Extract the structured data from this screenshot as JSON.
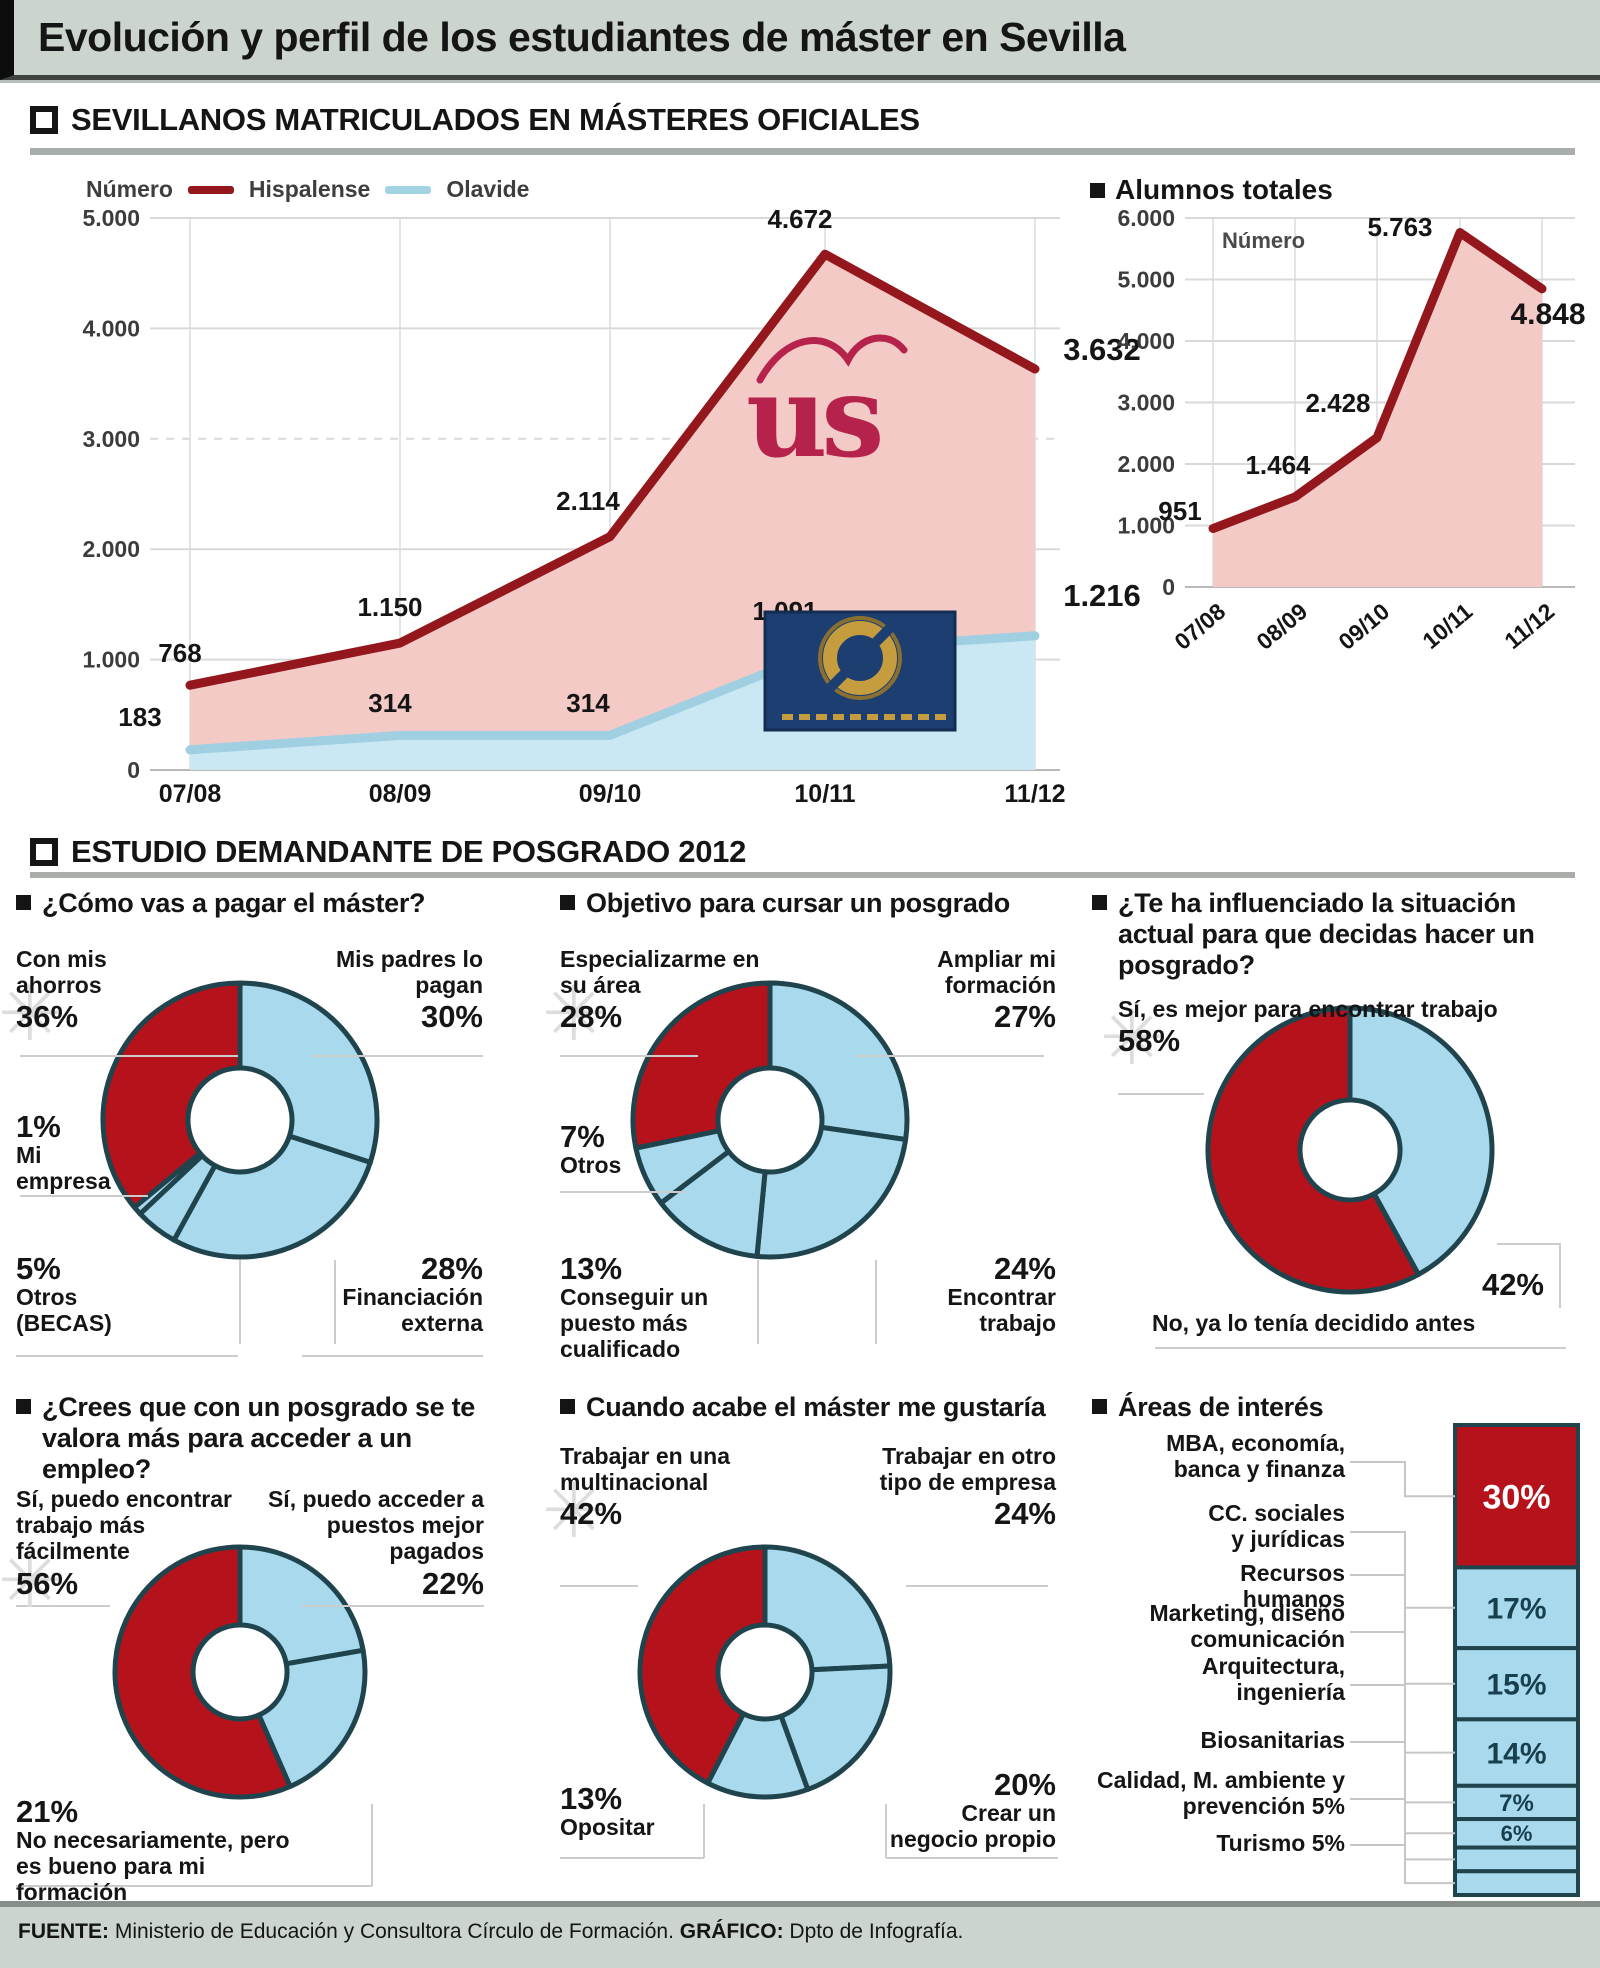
{
  "header": {
    "title": "Evolución y perfil de los estudiantes de máster en Sevilla"
  },
  "sections": [
    {
      "title": "SEVILLANOS MATRICULADOS EN MÁSTERES OFICIALES"
    },
    {
      "title": "ESTUDIO DEMANDANTE DE POSGRADO 2012"
    }
  ],
  "logos": {
    "us": "us"
  },
  "colors": {
    "red": "#b5121b",
    "blue": "#a9d9ec",
    "stroke": "#20444d",
    "pink": "#f4cac6",
    "light_blue_area": "#c9e8f4",
    "maroon_line": "#93171c",
    "olavide_line": "#9fcfe0",
    "band": "#ccd5cd"
  },
  "footer": {
    "fuente_label": "FUENTE:",
    "fuente_text": " Ministerio de Educación y Consultora Círculo de Formación. ",
    "grafico_label": "GRÁFICO:",
    "grafico_text": " Dpto de Infografía."
  },
  "chart_data": [
    {
      "id": "matriculados",
      "type": "area",
      "ylabel": "Número",
      "categories": [
        "07/08",
        "08/09",
        "09/10",
        "10/11",
        "11/12"
      ],
      "ylim": [
        0,
        5000
      ],
      "yticks": [
        "5.000",
        "4.000",
        "3.000",
        "2.000",
        "1.000",
        "0"
      ],
      "series": [
        {
          "name": "Hispalense",
          "color": "#93171c",
          "fill": "#f4cac6",
          "values": [
            768,
            1150,
            2114,
            4672,
            3632
          ],
          "labels": [
            "768",
            "1.150",
            "2.114",
            "4.672",
            "3.632"
          ]
        },
        {
          "name": "Olavide",
          "color": "#9fcfe0",
          "fill": "#c9e8f4",
          "values": [
            183,
            314,
            314,
            1091,
            1216
          ],
          "labels": [
            "183",
            "314",
            "314",
            "1.091",
            "1.216"
          ]
        }
      ]
    },
    {
      "id": "totales",
      "type": "area",
      "title": "Alumnos totales",
      "ylabel": "Número",
      "categories": [
        "07/08",
        "08/09",
        "09/10",
        "10/11",
        "11/12"
      ],
      "ylim": [
        0,
        6000
      ],
      "yticks": [
        "6.000",
        "5.000",
        "4.000",
        "3.000",
        "2.000",
        "1.000",
        "0"
      ],
      "series": [
        {
          "name": "Alumnos totales",
          "color": "#93171c",
          "fill": "#f4cac6",
          "values": [
            951,
            1464,
            2428,
            5763,
            4848
          ],
          "labels": [
            "951",
            "1.464",
            "2.428",
            "5.763",
            "4.848"
          ]
        }
      ]
    },
    {
      "id": "pago",
      "type": "donut",
      "question": "¿Cómo vas a pagar el máster?",
      "slices": [
        {
          "label": "Mis padres lo pagan",
          "pct": "30%",
          "value": 30,
          "color": "blue"
        },
        {
          "label": "Financiación externa",
          "pct": "28%",
          "value": 28,
          "color": "blue"
        },
        {
          "label": "Otros (BECAS)",
          "pct": "5%",
          "value": 5,
          "color": "blue"
        },
        {
          "label": "Mi empresa",
          "pct": "1%",
          "value": 1,
          "color": "blue"
        },
        {
          "label": "Con mis ahorros",
          "pct": "36%",
          "value": 36,
          "color": "red"
        }
      ]
    },
    {
      "id": "objetivo",
      "type": "donut",
      "question": "Objetivo para cursar un posgrado",
      "slices": [
        {
          "label": "Ampliar mi formación",
          "pct": "27%",
          "value": 27,
          "color": "blue"
        },
        {
          "label": "Encontrar trabajo",
          "pct": "24%",
          "value": 24,
          "color": "blue"
        },
        {
          "label": "Conseguir un puesto más cualificado",
          "pct": "13%",
          "value": 13,
          "color": "blue"
        },
        {
          "label": "Otros",
          "pct": "7%",
          "value": 7,
          "color": "blue"
        },
        {
          "label": "Especializarme en su área",
          "pct": "28%",
          "value": 28,
          "color": "red"
        }
      ]
    },
    {
      "id": "influencia",
      "type": "donut",
      "question": "¿Te ha influenciado la situación actual para que decidas hacer un posgrado?",
      "slices": [
        {
          "label": "No, ya lo tenía decidido antes",
          "pct": "42%",
          "value": 42,
          "color": "blue"
        },
        {
          "label": "Sí, es mejor para encontrar trabajo",
          "pct": "58%",
          "value": 58,
          "color": "red"
        }
      ]
    },
    {
      "id": "valoracion",
      "type": "donut",
      "question": "¿Crees que con un posgrado se te valora más para acceder a un empleo?",
      "slices": [
        {
          "label": "Sí, puedo acceder a puestos mejor pagados",
          "pct": "22%",
          "value": 22,
          "color": "blue"
        },
        {
          "label": "No necesariamente, pero es bueno para mi formación",
          "pct": "21%",
          "value": 21,
          "color": "blue"
        },
        {
          "label": "Sí, puedo encontrar trabajo más fácilmente",
          "pct": "56%",
          "value": 56,
          "color": "red"
        }
      ]
    },
    {
      "id": "al_acabar",
      "type": "donut",
      "question": "Cuando acabe el máster me gustaría",
      "slices": [
        {
          "label": "Trabajar en otro tipo de empresa",
          "pct": "24%",
          "value": 24,
          "color": "blue"
        },
        {
          "label": "Crear un negocio propio",
          "pct": "20%",
          "value": 20,
          "color": "blue"
        },
        {
          "label": "Opositar",
          "pct": "13%",
          "value": 13,
          "color": "blue"
        },
        {
          "label": "Trabajar en una multinacional",
          "pct": "42%",
          "value": 42,
          "color": "red"
        }
      ]
    },
    {
      "id": "areas",
      "type": "stacked-bar",
      "title": "Áreas de interés",
      "segments": [
        {
          "label": "MBA, economía, banca y finanza",
          "pct": "30%",
          "value": 30,
          "color": "red"
        },
        {
          "label": "CC. sociales y jurídicas",
          "pct": "17%",
          "value": 17,
          "color": "blue"
        },
        {
          "label": "Recursos humanos",
          "pct": "15%",
          "value": 15,
          "color": "blue"
        },
        {
          "label": "Marketing, diseño comunicación",
          "pct": "14%",
          "value": 14,
          "color": "blue"
        },
        {
          "label": "Arquitectura, ingeniería",
          "pct": "7%",
          "value": 7,
          "color": "blue"
        },
        {
          "label": "Biosanitarias",
          "pct": "6%",
          "value": 6,
          "color": "blue"
        },
        {
          "label": "Calidad, M. ambiente y prevención",
          "pct": "5%",
          "value": 5,
          "color": "blue"
        },
        {
          "label": "Turismo",
          "pct": "5%",
          "value": 5,
          "color": "blue"
        }
      ]
    }
  ]
}
